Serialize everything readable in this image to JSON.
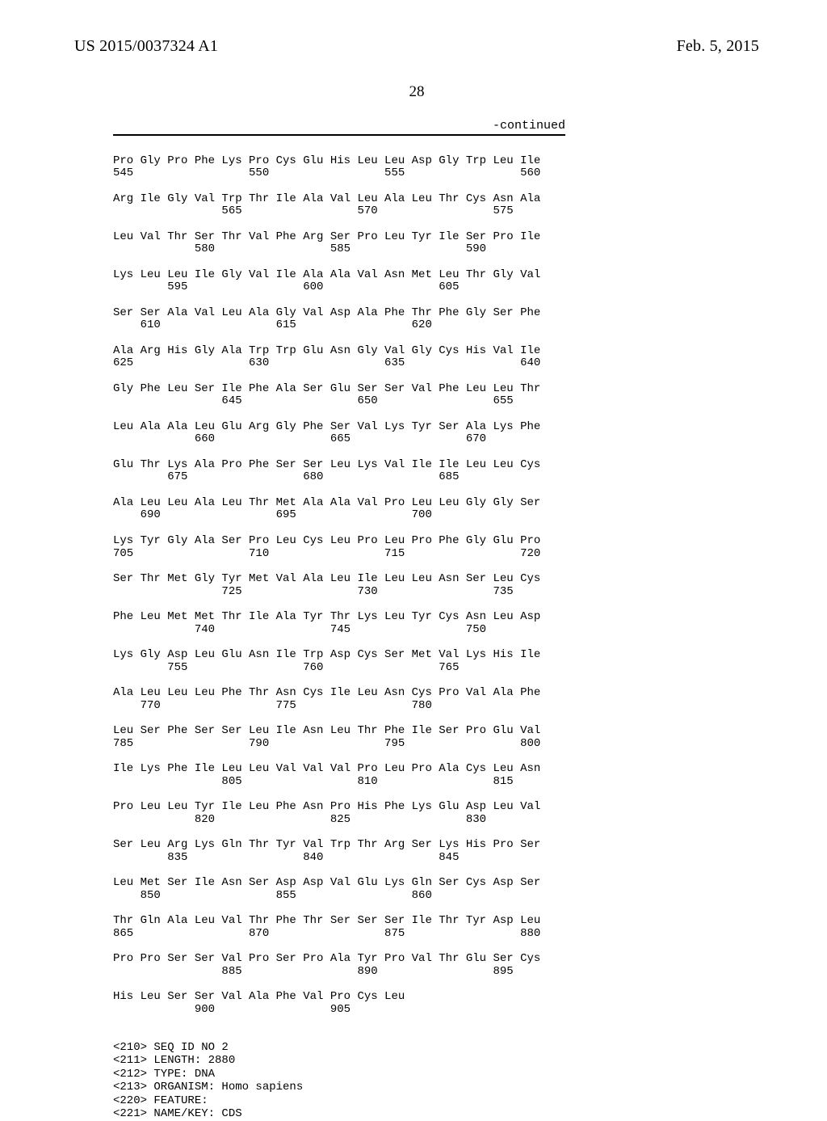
{
  "header": {
    "publication_number": "US 2015/0037324 A1",
    "publication_date": "Feb. 5, 2015",
    "page_number": "28",
    "continued_label": "-continued"
  },
  "sequence": {
    "rows": [
      {
        "aa": "Pro Gly Pro Phe Lys Pro Cys Glu His Leu Leu Asp Gly Trp Leu Ile",
        "nums": "545                 550                 555                 560"
      },
      {
        "aa": "Arg Ile Gly Val Trp Thr Ile Ala Val Leu Ala Leu Thr Cys Asn Ala",
        "nums": "                565                 570                 575"
      },
      {
        "aa": "Leu Val Thr Ser Thr Val Phe Arg Ser Pro Leu Tyr Ile Ser Pro Ile",
        "nums": "            580                 585                 590"
      },
      {
        "aa": "Lys Leu Leu Ile Gly Val Ile Ala Ala Val Asn Met Leu Thr Gly Val",
        "nums": "        595                 600                 605"
      },
      {
        "aa": "Ser Ser Ala Val Leu Ala Gly Val Asp Ala Phe Thr Phe Gly Ser Phe",
        "nums": "    610                 615                 620"
      },
      {
        "aa": "Ala Arg His Gly Ala Trp Trp Glu Asn Gly Val Gly Cys His Val Ile",
        "nums": "625                 630                 635                 640"
      },
      {
        "aa": "Gly Phe Leu Ser Ile Phe Ala Ser Glu Ser Ser Val Phe Leu Leu Thr",
        "nums": "                645                 650                 655"
      },
      {
        "aa": "Leu Ala Ala Leu Glu Arg Gly Phe Ser Val Lys Tyr Ser Ala Lys Phe",
        "nums": "            660                 665                 670"
      },
      {
        "aa": "Glu Thr Lys Ala Pro Phe Ser Ser Leu Lys Val Ile Ile Leu Leu Cys",
        "nums": "        675                 680                 685"
      },
      {
        "aa": "Ala Leu Leu Ala Leu Thr Met Ala Ala Val Pro Leu Leu Gly Gly Ser",
        "nums": "    690                 695                 700"
      },
      {
        "aa": "Lys Tyr Gly Ala Ser Pro Leu Cys Leu Pro Leu Pro Phe Gly Glu Pro",
        "nums": "705                 710                 715                 720"
      },
      {
        "aa": "Ser Thr Met Gly Tyr Met Val Ala Leu Ile Leu Leu Asn Ser Leu Cys",
        "nums": "                725                 730                 735"
      },
      {
        "aa": "Phe Leu Met Met Thr Ile Ala Tyr Thr Lys Leu Tyr Cys Asn Leu Asp",
        "nums": "            740                 745                 750"
      },
      {
        "aa": "Lys Gly Asp Leu Glu Asn Ile Trp Asp Cys Ser Met Val Lys His Ile",
        "nums": "        755                 760                 765"
      },
      {
        "aa": "Ala Leu Leu Leu Phe Thr Asn Cys Ile Leu Asn Cys Pro Val Ala Phe",
        "nums": "    770                 775                 780"
      },
      {
        "aa": "Leu Ser Phe Ser Ser Leu Ile Asn Leu Thr Phe Ile Ser Pro Glu Val",
        "nums": "785                 790                 795                 800"
      },
      {
        "aa": "Ile Lys Phe Ile Leu Leu Val Val Val Pro Leu Pro Ala Cys Leu Asn",
        "nums": "                805                 810                 815"
      },
      {
        "aa": "Pro Leu Leu Tyr Ile Leu Phe Asn Pro His Phe Lys Glu Asp Leu Val",
        "nums": "            820                 825                 830"
      },
      {
        "aa": "Ser Leu Arg Lys Gln Thr Tyr Val Trp Thr Arg Ser Lys His Pro Ser",
        "nums": "        835                 840                 845"
      },
      {
        "aa": "Leu Met Ser Ile Asn Ser Asp Asp Val Glu Lys Gln Ser Cys Asp Ser",
        "nums": "    850                 855                 860"
      },
      {
        "aa": "Thr Gln Ala Leu Val Thr Phe Thr Ser Ser Ser Ile Thr Tyr Asp Leu",
        "nums": "865                 870                 875                 880"
      },
      {
        "aa": "Pro Pro Ser Ser Val Pro Ser Pro Ala Tyr Pro Val Thr Glu Ser Cys",
        "nums": "                885                 890                 895"
      },
      {
        "aa": "His Leu Ser Ser Val Ala Phe Val Pro Cys Leu",
        "nums": "            900                 905"
      }
    ]
  },
  "annotations": [
    "<210> SEQ ID NO 2",
    "<211> LENGTH: 2880",
    "<212> TYPE: DNA",
    "<213> ORGANISM: Homo sapiens",
    "<220> FEATURE:",
    "<221> NAME/KEY: CDS"
  ]
}
